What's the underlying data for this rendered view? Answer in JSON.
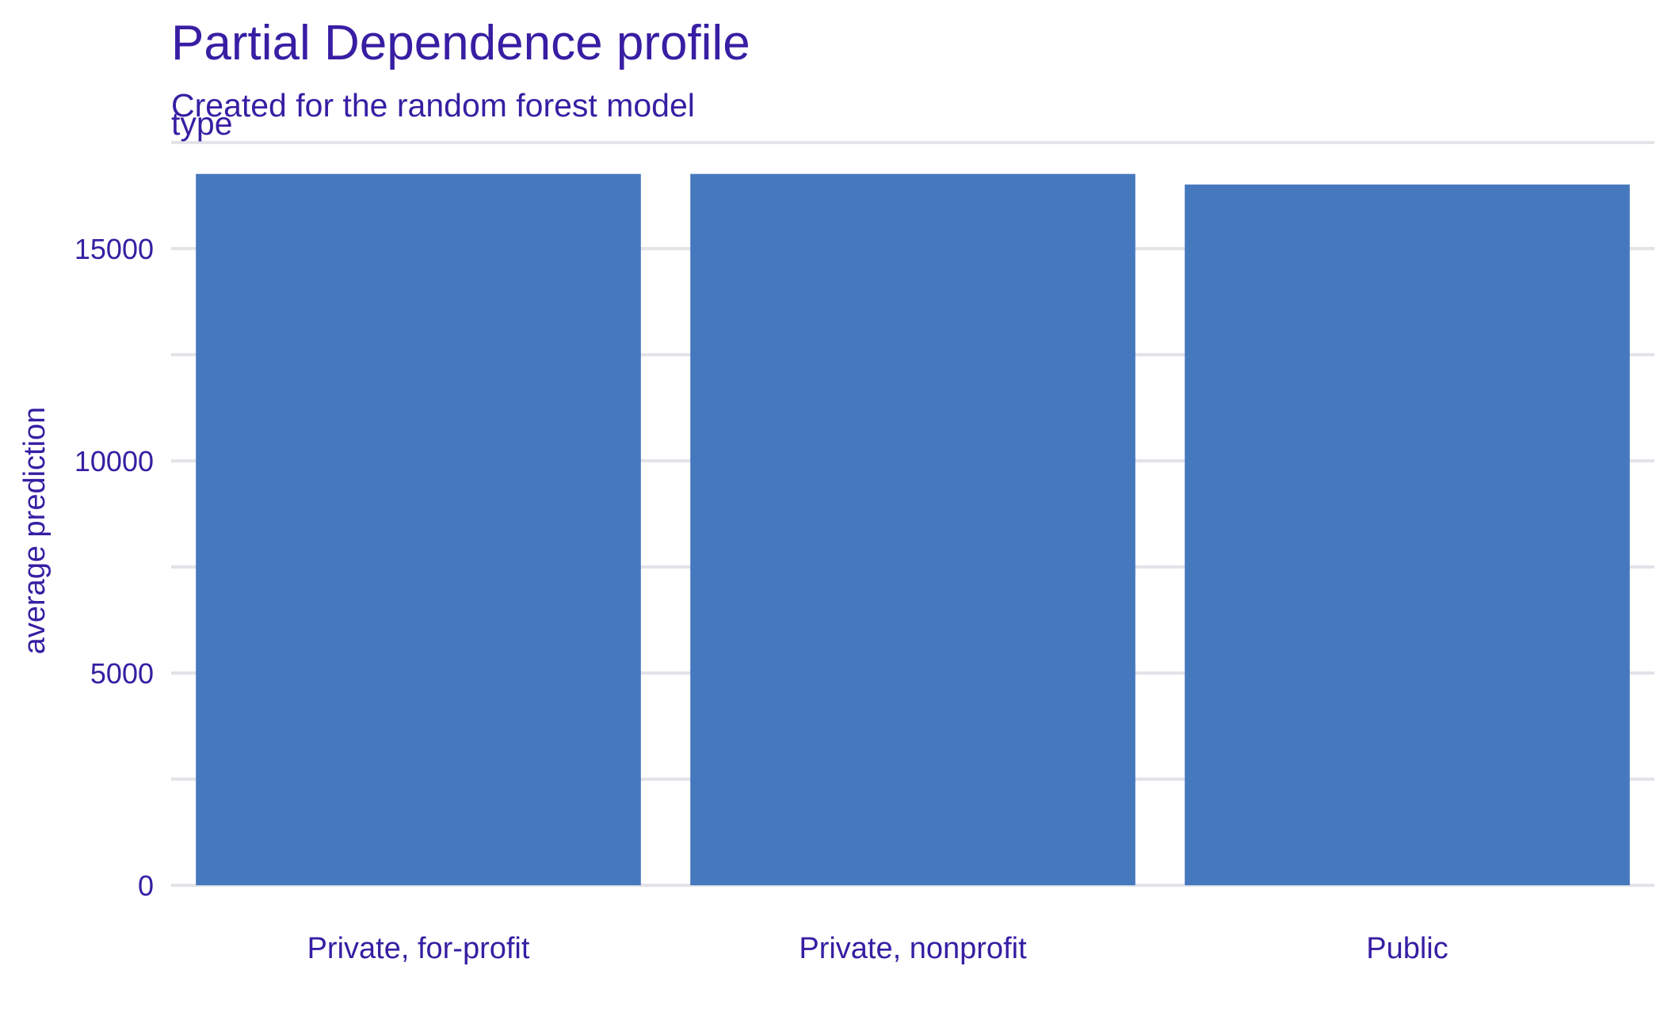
{
  "chart_data": {
    "type": "bar",
    "title": "Partial Dependence profile",
    "subtitle": "Created for the random forest model",
    "facet_label": "type",
    "xlabel": "",
    "ylabel": "average prediction",
    "categories": [
      "Private, for-profit",
      "Private, nonprofit",
      "Public"
    ],
    "values": [
      16760,
      16760,
      16510
    ],
    "ylim": [
      0,
      17500
    ],
    "y_ticks": [
      0,
      5000,
      10000,
      15000
    ],
    "y_tick_labels": [
      "0",
      "5000",
      "10000",
      "15000"
    ],
    "grid": true,
    "legend": "none",
    "colors": {
      "bar": "#4678BE",
      "text": "#371EA3",
      "grid": "#E3E3E8"
    }
  }
}
